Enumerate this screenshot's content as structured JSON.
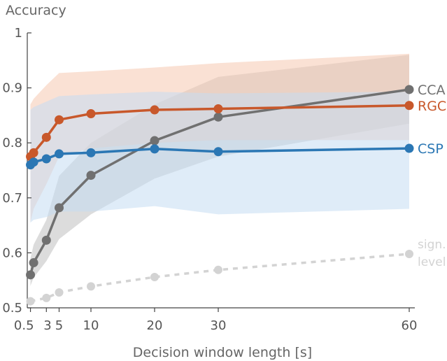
{
  "chart_data": {
    "type": "line",
    "xlabel": "Decision window length [s]",
    "ylabel": "Accuracy",
    "xlim": [
      0,
      60
    ],
    "ylim": [
      0.5,
      1.0
    ],
    "x_ticks": [
      {
        "value": 0.5,
        "label": "0.5"
      },
      {
        "value": 3,
        "label": "3"
      },
      {
        "value": 5,
        "label": "5"
      },
      {
        "value": 10,
        "label": "10"
      },
      {
        "value": 20,
        "label": "20"
      },
      {
        "value": 30,
        "label": "30"
      },
      {
        "value": 60,
        "label": "60"
      }
    ],
    "y_ticks": [
      {
        "value": 0.5,
        "label": "0.5"
      },
      {
        "value": 0.6,
        "label": "0.6"
      },
      {
        "value": 0.7,
        "label": "0.7"
      },
      {
        "value": 0.8,
        "label": "0.8"
      },
      {
        "value": 0.9,
        "label": "0.9"
      },
      {
        "value": 1.0,
        "label": "1"
      }
    ],
    "grid": false,
    "x": [
      0.5,
      1,
      3,
      5,
      10,
      20,
      30,
      60
    ],
    "series": [
      {
        "name": "CCA",
        "color": "#707070",
        "band_color": "#bfbfbf",
        "values": [
          0.56,
          0.582,
          0.623,
          0.682,
          0.741,
          0.804,
          0.847,
          0.897
        ],
        "lower": [
          0.54,
          0.555,
          0.585,
          0.625,
          0.67,
          0.735,
          0.775,
          0.835
        ],
        "upper": [
          0.59,
          0.615,
          0.66,
          0.74,
          0.8,
          0.87,
          0.92,
          0.96
        ]
      },
      {
        "name": "RGC",
        "color": "#c8582b",
        "band_color": "#f5c9b0",
        "values": [
          0.775,
          0.782,
          0.81,
          0.842,
          0.853,
          0.86,
          0.862,
          0.868
        ],
        "lower": [
          0.655,
          0.68,
          0.725,
          0.775,
          0.79,
          0.8,
          0.805,
          0.805
        ],
        "upper": [
          0.87,
          0.88,
          0.905,
          0.927,
          0.93,
          0.937,
          0.945,
          0.962
        ]
      },
      {
        "name": "CSP",
        "color": "#2b77b4",
        "band_color": "#c4dcf2",
        "values": [
          0.76,
          0.765,
          0.771,
          0.78,
          0.782,
          0.789,
          0.784,
          0.79
        ],
        "lower": [
          0.655,
          0.66,
          0.665,
          0.675,
          0.675,
          0.685,
          0.67,
          0.68
        ],
        "upper": [
          0.86,
          0.865,
          0.875,
          0.885,
          0.888,
          0.893,
          0.89,
          0.893
        ]
      }
    ],
    "significance": {
      "name_lines": [
        "sign.",
        "level"
      ],
      "color": "#d3d3d3",
      "x": [
        0.5,
        3,
        5,
        10,
        20,
        30,
        60
      ],
      "values": [
        0.512,
        0.518,
        0.528,
        0.539,
        0.556,
        0.569,
        0.598
      ]
    },
    "series_label_placement": "right-end"
  }
}
